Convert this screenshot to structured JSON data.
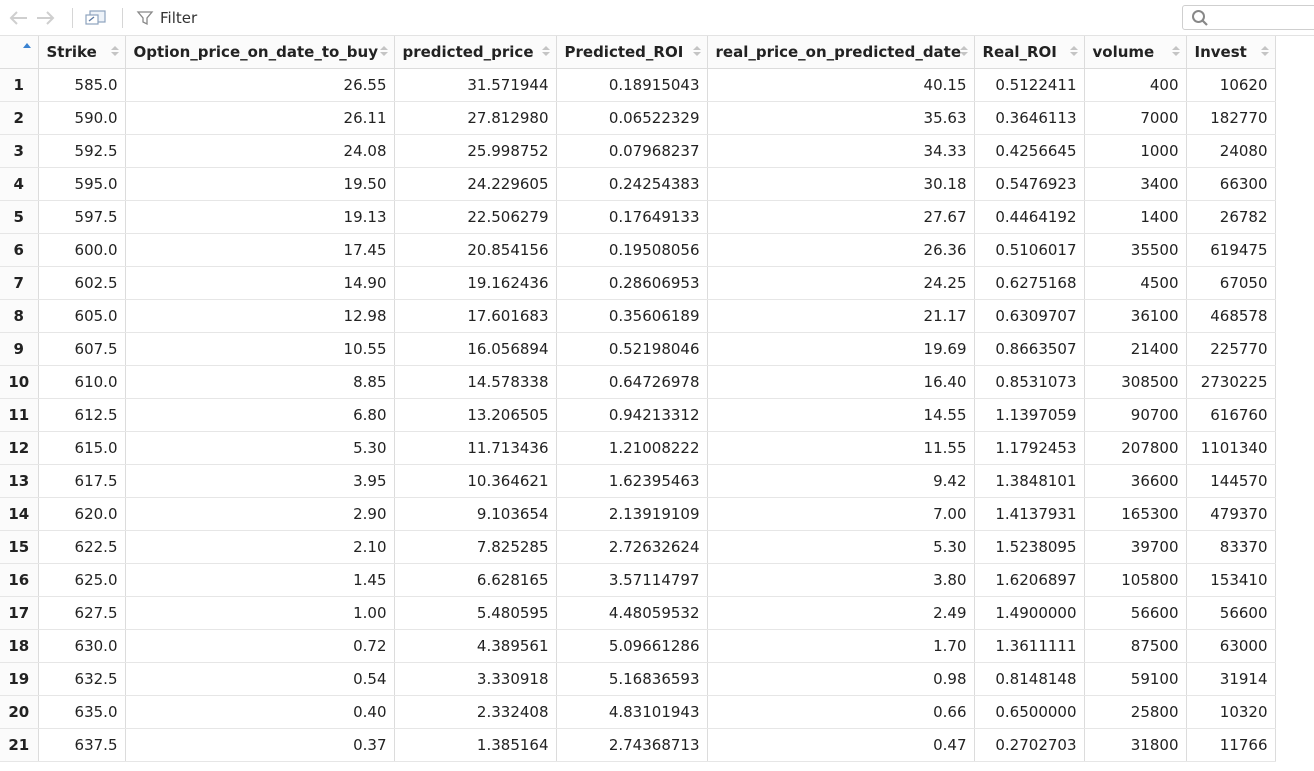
{
  "toolbar": {
    "filter_label": "Filter",
    "search_placeholder": ""
  },
  "colors": {
    "sort_active": "#3b83d1",
    "grid_line": "#dcdcdc",
    "header_bg": "#fbfbfb"
  },
  "table": {
    "columns": [
      "Strike",
      "Option_price_on_date_to_buy",
      "predicted_price",
      "Predicted_ROI",
      "real_price_on_predicted_date",
      "Real_ROI",
      "volume",
      "Invest"
    ],
    "rows": [
      [
        "1",
        "585.0",
        "26.55",
        "31.571944",
        "0.18915043",
        "40.15",
        "0.5122411",
        "400",
        "10620"
      ],
      [
        "2",
        "590.0",
        "26.11",
        "27.812980",
        "0.06522329",
        "35.63",
        "0.3646113",
        "7000",
        "182770"
      ],
      [
        "3",
        "592.5",
        "24.08",
        "25.998752",
        "0.07968237",
        "34.33",
        "0.4256645",
        "1000",
        "24080"
      ],
      [
        "4",
        "595.0",
        "19.50",
        "24.229605",
        "0.24254383",
        "30.18",
        "0.5476923",
        "3400",
        "66300"
      ],
      [
        "5",
        "597.5",
        "19.13",
        "22.506279",
        "0.17649133",
        "27.67",
        "0.4464192",
        "1400",
        "26782"
      ],
      [
        "6",
        "600.0",
        "17.45",
        "20.854156",
        "0.19508056",
        "26.36",
        "0.5106017",
        "35500",
        "619475"
      ],
      [
        "7",
        "602.5",
        "14.90",
        "19.162436",
        "0.28606953",
        "24.25",
        "0.6275168",
        "4500",
        "67050"
      ],
      [
        "8",
        "605.0",
        "12.98",
        "17.601683",
        "0.35606189",
        "21.17",
        "0.6309707",
        "36100",
        "468578"
      ],
      [
        "9",
        "607.5",
        "10.55",
        "16.056894",
        "0.52198046",
        "19.69",
        "0.8663507",
        "21400",
        "225770"
      ],
      [
        "10",
        "610.0",
        "8.85",
        "14.578338",
        "0.64726978",
        "16.40",
        "0.8531073",
        "308500",
        "2730225"
      ],
      [
        "11",
        "612.5",
        "6.80",
        "13.206505",
        "0.94213312",
        "14.55",
        "1.1397059",
        "90700",
        "616760"
      ],
      [
        "12",
        "615.0",
        "5.30",
        "11.713436",
        "1.21008222",
        "11.55",
        "1.1792453",
        "207800",
        "1101340"
      ],
      [
        "13",
        "617.5",
        "3.95",
        "10.364621",
        "1.62395463",
        "9.42",
        "1.3848101",
        "36600",
        "144570"
      ],
      [
        "14",
        "620.0",
        "2.90",
        "9.103654",
        "2.13919109",
        "7.00",
        "1.4137931",
        "165300",
        "479370"
      ],
      [
        "15",
        "622.5",
        "2.10",
        "7.825285",
        "2.72632624",
        "5.30",
        "1.5238095",
        "39700",
        "83370"
      ],
      [
        "16",
        "625.0",
        "1.45",
        "6.628165",
        "3.57114797",
        "3.80",
        "1.6206897",
        "105800",
        "153410"
      ],
      [
        "17",
        "627.5",
        "1.00",
        "5.480595",
        "4.48059532",
        "2.49",
        "1.4900000",
        "56600",
        "56600"
      ],
      [
        "18",
        "630.0",
        "0.72",
        "4.389561",
        "5.09661286",
        "1.70",
        "1.3611111",
        "87500",
        "63000"
      ],
      [
        "19",
        "632.5",
        "0.54",
        "3.330918",
        "5.16836593",
        "0.98",
        "0.8148148",
        "59100",
        "31914"
      ],
      [
        "20",
        "635.0",
        "0.40",
        "2.332408",
        "4.83101943",
        "0.66",
        "0.6500000",
        "25800",
        "10320"
      ],
      [
        "21",
        "637.5",
        "0.37",
        "1.385164",
        "2.74368713",
        "0.47",
        "0.2702703",
        "31800",
        "11766"
      ]
    ]
  }
}
